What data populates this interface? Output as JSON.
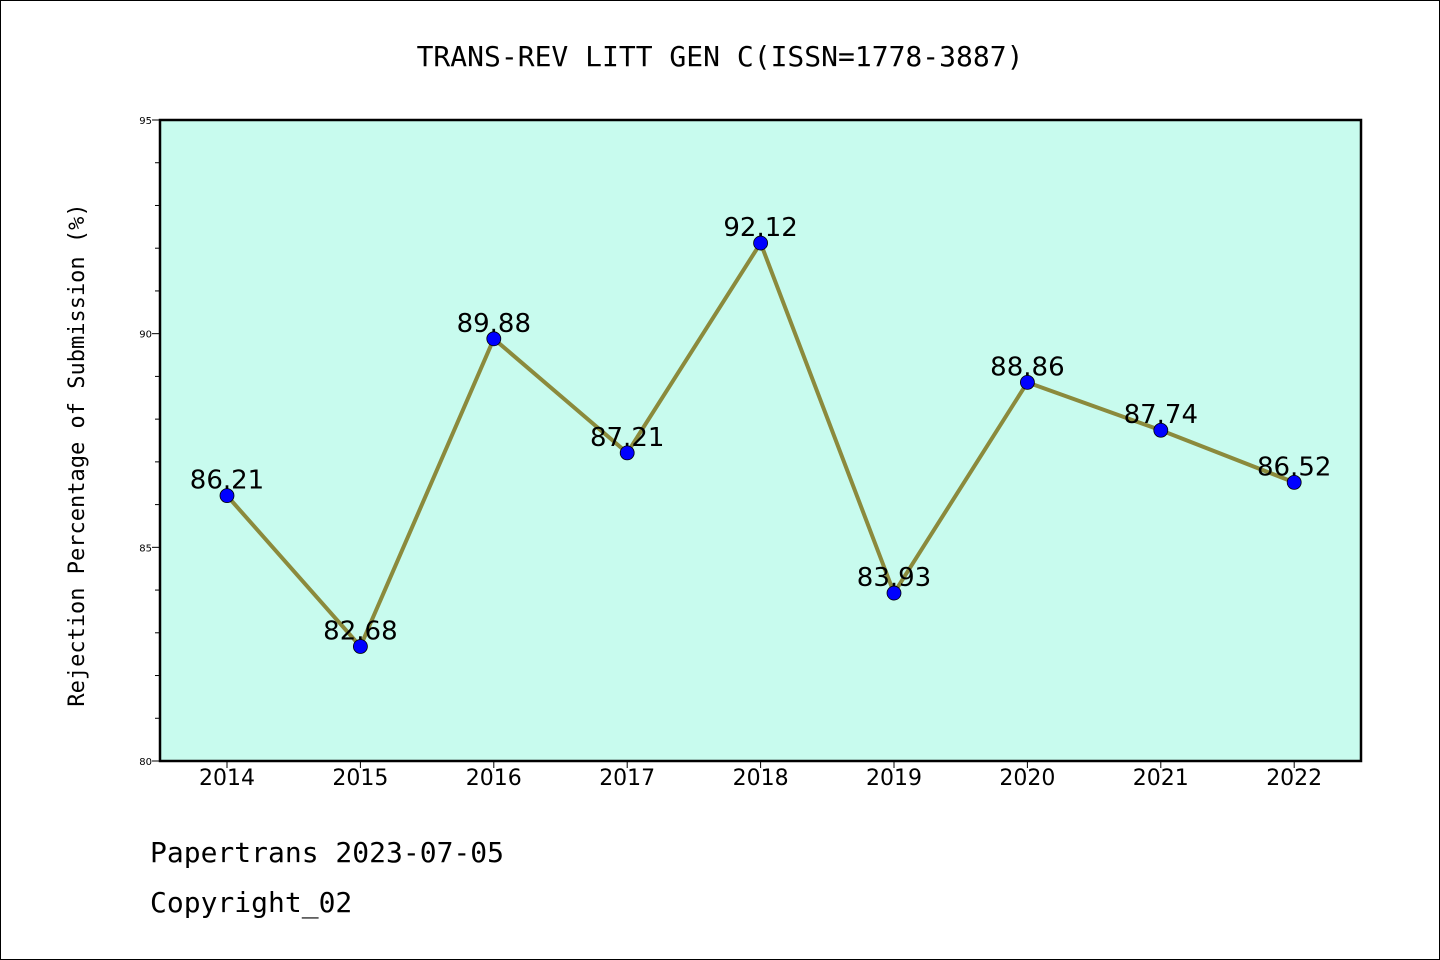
{
  "chart_data": {
    "type": "line",
    "title": "TRANS-REV LITT GEN C(ISSN=1778-3887)",
    "xlabel": "",
    "ylabel": "Rejection Percentage of Submission (%)",
    "categories": [
      "2014",
      "2015",
      "2016",
      "2017",
      "2018",
      "2019",
      "2020",
      "2021",
      "2022"
    ],
    "values": [
      86.21,
      82.68,
      89.88,
      87.21,
      92.12,
      83.93,
      88.86,
      87.74,
      86.52
    ],
    "data_labels": [
      "86.21",
      "82.68",
      "89.88",
      "87.21",
      "92.12",
      "83.93",
      "88.86",
      "87.74",
      "86.52"
    ],
    "ylim": [
      80,
      95
    ],
    "yticks": [
      80,
      85,
      90,
      95
    ],
    "grid": false,
    "colors": {
      "plot_background": "#c8fbee",
      "line": "#8b8a3c",
      "marker": "#0000ff"
    }
  },
  "footer": {
    "line1": "Papertrans 2023-07-05",
    "line2": "Copyright_02"
  }
}
